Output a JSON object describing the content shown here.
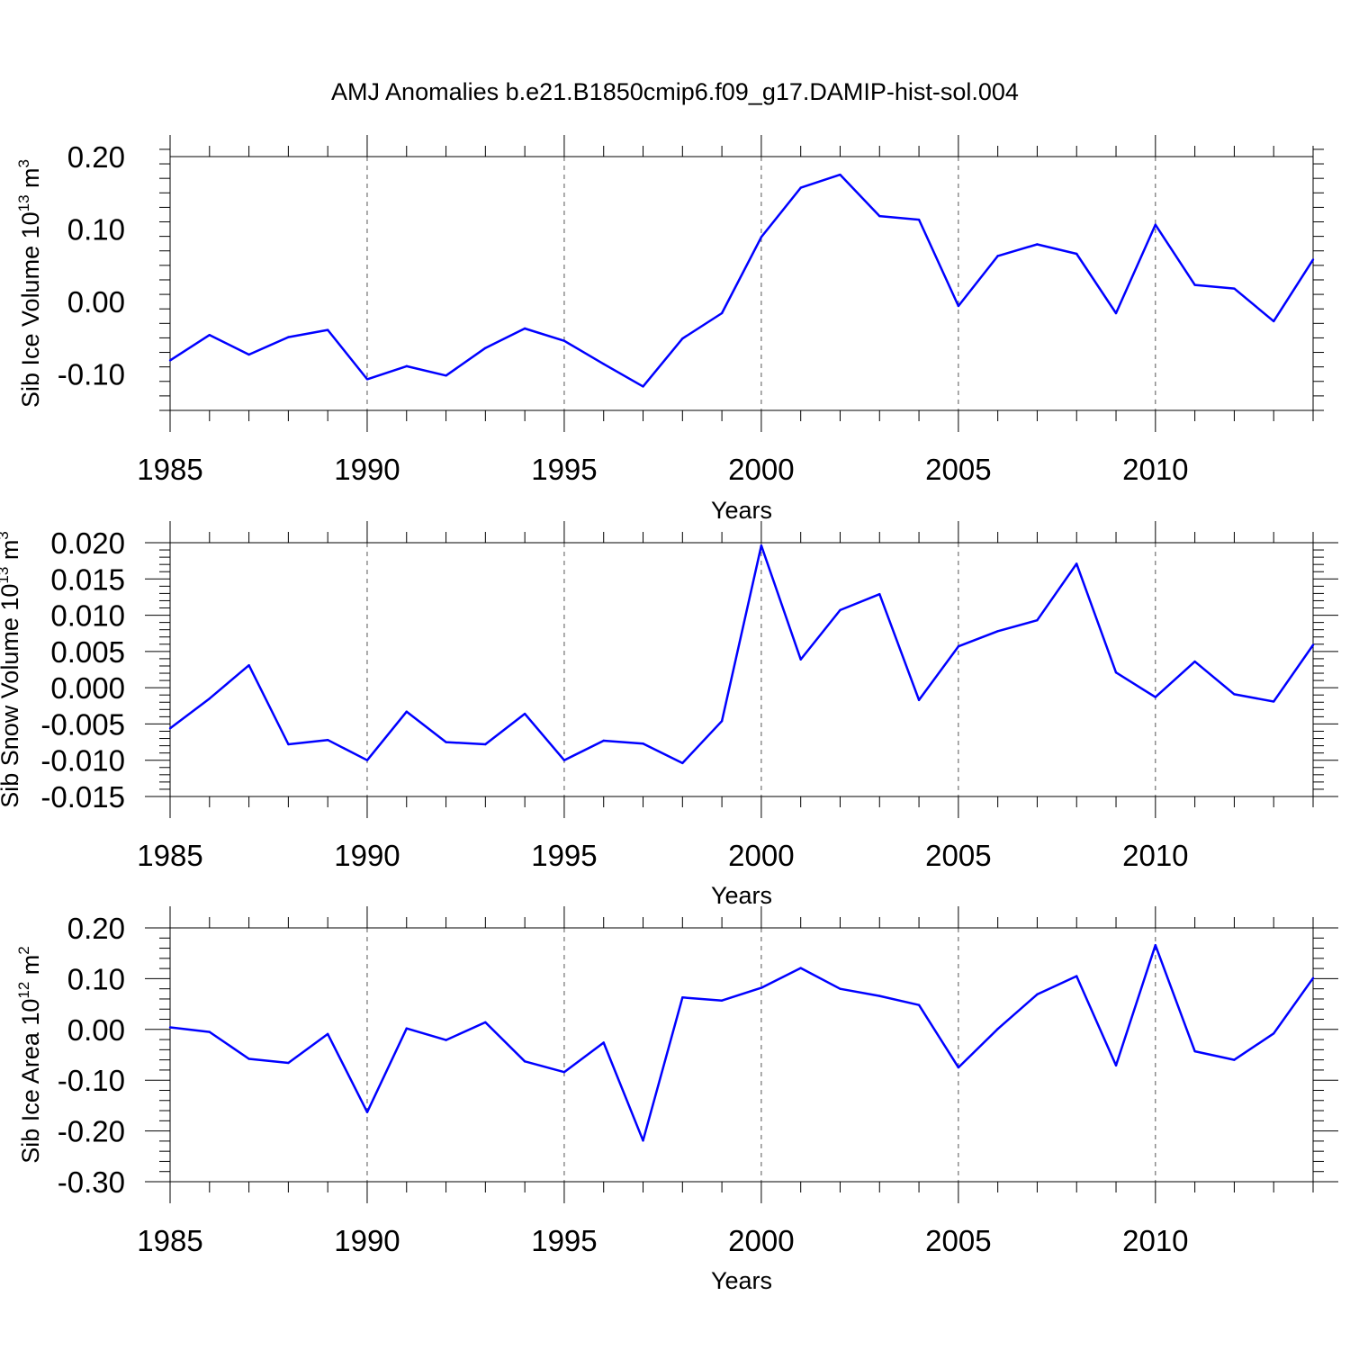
{
  "figure": {
    "title": "AMJ Anomalies b.e21.B1850cmip6.f09_g17.DAMIP-hist-sol.004"
  },
  "colors": {
    "series": "#0000ff",
    "axis": "#000000",
    "grid": "#555555"
  },
  "chart_data": [
    {
      "type": "line",
      "title": "",
      "ylabel": {
        "base": "Sib Ice Volume 10",
        "exp": "13",
        "unit": " m",
        "unit_exp": "3"
      },
      "xlabel": "Years",
      "xlim": [
        1985,
        2014
      ],
      "ylim": [
        -0.15,
        0.2
      ],
      "x_ticks": [
        "1985",
        "1990",
        "1995",
        "2000",
        "2005",
        "2010"
      ],
      "y_ticks": [
        "0.20",
        "0.10",
        "0.00",
        "-0.10"
      ],
      "y_tick_values": [
        0.2,
        0.1,
        0.0,
        -0.1
      ],
      "grid": "vertical dashed at major x ticks",
      "x": [
        1985,
        1986,
        1987,
        1988,
        1989,
        1990,
        1991,
        1992,
        1993,
        1994,
        1995,
        1996,
        1997,
        1998,
        1999,
        2000,
        2001,
        2002,
        2003,
        2004,
        2005,
        2006,
        2007,
        2008,
        2009,
        2010,
        2011,
        2012,
        2013,
        2014
      ],
      "values": [
        -0.081,
        -0.046,
        -0.073,
        -0.049,
        -0.039,
        -0.107,
        -0.089,
        -0.102,
        -0.064,
        -0.037,
        -0.054,
        -0.086,
        -0.117,
        -0.051,
        -0.016,
        0.089,
        0.157,
        0.175,
        0.118,
        0.113,
        -0.006,
        0.063,
        0.079,
        0.066,
        -0.016,
        0.106,
        0.023,
        0.018,
        -0.027,
        0.058
      ]
    },
    {
      "type": "line",
      "title": "",
      "ylabel": {
        "base": "Sib Snow Volume 10",
        "exp": "13",
        "unit": " m",
        "unit_exp": "3"
      },
      "xlabel": "Years",
      "xlim": [
        1985,
        2014
      ],
      "ylim": [
        -0.015,
        0.02
      ],
      "x_ticks": [
        "1985",
        "1990",
        "1995",
        "2000",
        "2005",
        "2010"
      ],
      "y_ticks": [
        "0.020",
        "0.015",
        "0.010",
        "0.005",
        "0.000",
        "-0.005",
        "-0.010",
        "-0.015"
      ],
      "y_tick_values": [
        0.02,
        0.015,
        0.01,
        0.005,
        0.0,
        -0.005,
        -0.01,
        -0.015
      ],
      "grid": "vertical dashed at major x ticks",
      "x": [
        1985,
        1986,
        1987,
        1988,
        1989,
        1990,
        1991,
        1992,
        1993,
        1994,
        1995,
        1996,
        1997,
        1998,
        1999,
        2000,
        2001,
        2002,
        2003,
        2004,
        2005,
        2006,
        2007,
        2008,
        2009,
        2010,
        2011,
        2012,
        2013,
        2014
      ],
      "values": [
        -0.0056,
        -0.0015,
        0.0031,
        -0.0078,
        -0.0072,
        -0.01,
        -0.0033,
        -0.0075,
        -0.0078,
        -0.0036,
        -0.01,
        -0.0073,
        -0.0077,
        -0.0104,
        -0.0046,
        0.0196,
        0.0039,
        0.0107,
        0.0129,
        -0.0017,
        0.0057,
        0.0078,
        0.0093,
        0.0171,
        0.0021,
        -0.0013,
        0.0036,
        -0.0009,
        -0.0019,
        0.0059
      ]
    },
    {
      "type": "line",
      "title": "",
      "ylabel": {
        "base": "Sib Ice Area 10",
        "exp": "12",
        "unit": " m",
        "unit_exp": "2"
      },
      "xlabel": "Years",
      "xlim": [
        1985,
        2014
      ],
      "ylim": [
        -0.3,
        0.2
      ],
      "x_ticks": [
        "1985",
        "1990",
        "1995",
        "2000",
        "2005",
        "2010"
      ],
      "y_ticks": [
        "0.20",
        "0.10",
        "0.00",
        "-0.10",
        "-0.20",
        "-0.30"
      ],
      "y_tick_values": [
        0.2,
        0.1,
        0.0,
        -0.1,
        -0.2,
        -0.3
      ],
      "grid": "vertical dashed at major x ticks",
      "x": [
        1985,
        1986,
        1987,
        1988,
        1989,
        1990,
        1991,
        1992,
        1993,
        1994,
        1995,
        1996,
        1997,
        1998,
        1999,
        2000,
        2001,
        2002,
        2003,
        2004,
        2005,
        2006,
        2007,
        2008,
        2009,
        2010,
        2011,
        2012,
        2013,
        2014
      ],
      "values": [
        0.004,
        -0.005,
        -0.058,
        -0.066,
        -0.009,
        -0.163,
        0.002,
        -0.021,
        0.014,
        -0.063,
        -0.084,
        -0.026,
        -0.219,
        0.063,
        0.057,
        0.082,
        0.121,
        0.08,
        0.066,
        0.048,
        -0.075,
        0.001,
        0.069,
        0.105,
        -0.071,
        0.166,
        -0.043,
        -0.06,
        -0.008,
        0.101
      ]
    }
  ]
}
